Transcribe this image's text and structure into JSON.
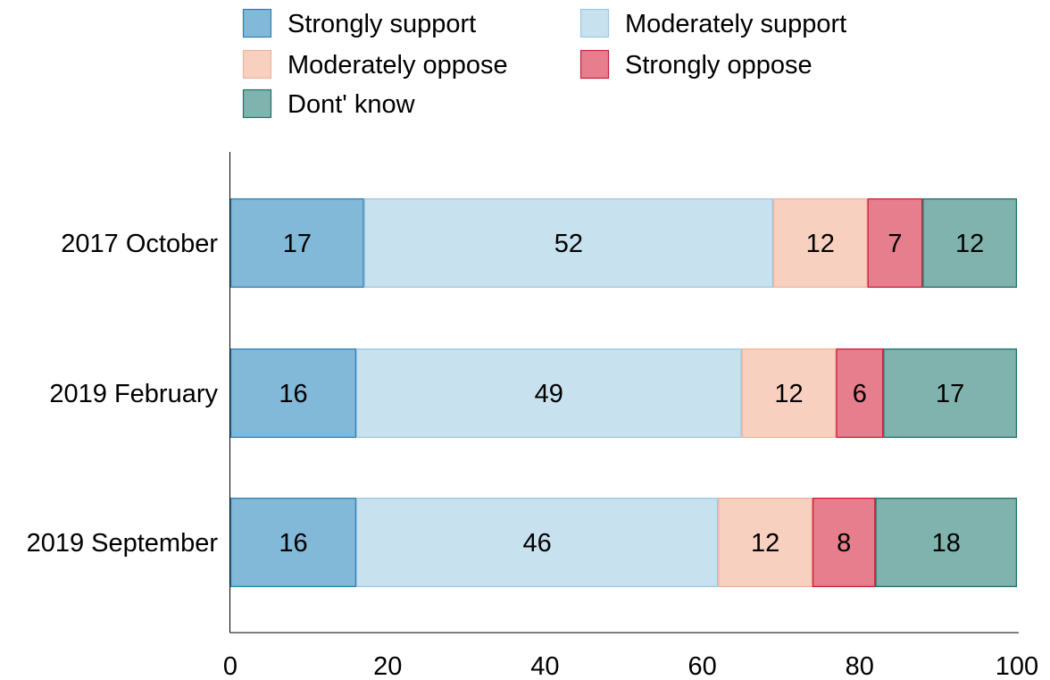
{
  "chart_data": {
    "type": "bar",
    "orientation": "horizontal",
    "stacked": true,
    "categories": [
      "2017 October",
      "2019 February",
      "2019 September"
    ],
    "series": [
      {
        "name": "Strongly support",
        "values": [
          17,
          16,
          16
        ],
        "color": "#82b8d8",
        "stroke": "#2f7fb4"
      },
      {
        "name": "Moderately support",
        "values": [
          52,
          49,
          46
        ],
        "color": "#c8e1ef",
        "stroke": "#9cc8e0"
      },
      {
        "name": "Moderately oppose",
        "values": [
          12,
          12,
          12
        ],
        "color": "#f8d0c0",
        "stroke": "#efb39c"
      },
      {
        "name": "Strongly oppose",
        "values": [
          7,
          6,
          8
        ],
        "color": "#e67e8d",
        "stroke": "#c8203a"
      },
      {
        "name": "Dont' know",
        "values": [
          12,
          17,
          18
        ],
        "color": "#80b3ad",
        "stroke": "#1f6e66"
      }
    ],
    "xlim": [
      0,
      100
    ],
    "xticks": [
      0,
      20,
      40,
      60,
      80,
      100
    ],
    "title": "",
    "xlabel": "",
    "ylabel": "",
    "grid": false,
    "legend_position": "top"
  }
}
